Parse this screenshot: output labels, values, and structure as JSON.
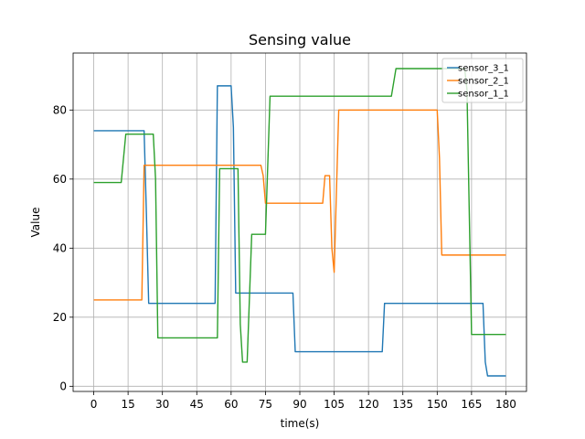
{
  "chart_data": {
    "type": "line",
    "title": "Sensing value",
    "xlabel": "time(s)",
    "ylabel": "Value",
    "xlim": [
      -9,
      189
    ],
    "ylim": [
      -1.5,
      96.5
    ],
    "xticks": [
      0,
      15,
      30,
      45,
      60,
      75,
      90,
      105,
      120,
      135,
      150,
      165,
      180
    ],
    "yticks": [
      0,
      20,
      40,
      60,
      80
    ],
    "grid": true,
    "legend_position": "upper-right",
    "series": [
      {
        "name": "sensor_3_1",
        "color": "#1f77b4",
        "x": [
          0,
          22,
          23,
          24,
          53,
          54,
          60,
          61,
          62,
          87,
          88,
          126,
          127,
          170,
          171,
          172,
          180
        ],
        "y": [
          74,
          74,
          50,
          24,
          24,
          87,
          87,
          75,
          27,
          27,
          10,
          10,
          24,
          24,
          7,
          3,
          3
        ]
      },
      {
        "name": "sensor_2_1",
        "color": "#ff7f0e",
        "x": [
          0,
          21,
          22,
          73,
          74,
          75,
          100,
          101,
          103,
          104,
          105,
          107,
          150,
          151,
          152,
          180
        ],
        "y": [
          25,
          25,
          64,
          64,
          61,
          53,
          53,
          61,
          61,
          40,
          33,
          80,
          80,
          66,
          38,
          38
        ]
      },
      {
        "name": "sensor_1_1",
        "color": "#2ca02c",
        "x": [
          0,
          12,
          14,
          26,
          27,
          28,
          54,
          55,
          63,
          64,
          65,
          67,
          69,
          70,
          75,
          77,
          130,
          132,
          162,
          163,
          165,
          180
        ],
        "y": [
          59,
          59,
          73,
          73,
          60,
          14,
          14,
          63,
          63,
          18,
          7,
          7,
          44,
          44,
          44,
          84,
          84,
          92,
          92,
          86,
          15,
          15
        ]
      }
    ]
  }
}
